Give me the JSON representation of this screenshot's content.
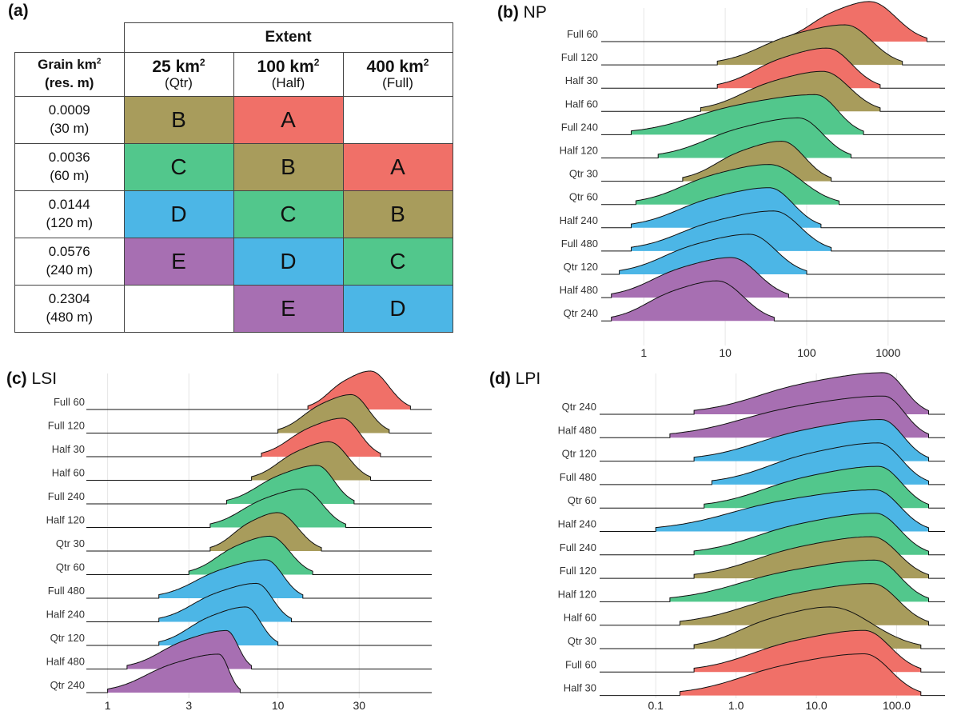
{
  "panel_a": {
    "label": "(a)",
    "extent_header": "Extent",
    "grain_header_line1": "Grain km",
    "grain_header_sup": "2",
    "grain_header_line2": "(res. m)",
    "columns": [
      {
        "size": "25 km",
        "sup": "2",
        "name": "(Qtr)"
      },
      {
        "size": "100 km",
        "sup": "2",
        "name": "(Half)"
      },
      {
        "size": "400 km",
        "sup": "2",
        "name": "(Full)"
      }
    ],
    "rows": [
      {
        "grain": "0.0009",
        "res": "(30 m)",
        "cells": [
          "B",
          "A",
          ""
        ]
      },
      {
        "grain": "0.0036",
        "res": "(60 m)",
        "cells": [
          "C",
          "B",
          "A"
        ]
      },
      {
        "grain": "0.0144",
        "res": "(120 m)",
        "cells": [
          "D",
          "C",
          "B"
        ]
      },
      {
        "grain": "0.0576",
        "res": "(240 m)",
        "cells": [
          "E",
          "D",
          "C"
        ]
      },
      {
        "grain": "0.2304",
        "res": "(480 m)",
        "cells": [
          "",
          "E",
          "D"
        ]
      }
    ],
    "colors": {
      "A": "#f07068",
      "B": "#a89c5c",
      "C": "#52c78c",
      "D": "#4cb6e6",
      "E": "#a76fb2",
      "": "#ffffff"
    }
  },
  "chart_data": [
    {
      "panel_label": "(b)",
      "title": "NP",
      "type": "ridgeline",
      "x_scale": "log10",
      "xlim": [
        0.3,
        5000
      ],
      "x_ticks": [
        1,
        10,
        100,
        1000
      ],
      "x_tick_labels": [
        "1",
        "10",
        "100",
        "1000"
      ],
      "rows": [
        "Full 60",
        "Full 120",
        "Half 30",
        "Half 60",
        "Full 240",
        "Half 120",
        "Qtr 30",
        "Qtr 60",
        "Half 240",
        "Full 480",
        "Qtr 120",
        "Half 480",
        "Qtr 240"
      ],
      "groups": [
        "A",
        "B",
        "A",
        "B",
        "C",
        "C",
        "B",
        "C",
        "D",
        "D",
        "D",
        "E",
        "E"
      ],
      "peaks": [
        600,
        300,
        180,
        160,
        130,
        80,
        50,
        35,
        35,
        40,
        20,
        12,
        8
      ],
      "ranges": [
        [
          50,
          3000
        ],
        [
          8,
          1500
        ],
        [
          8,
          800
        ],
        [
          5,
          800
        ],
        [
          0.7,
          500
        ],
        [
          1.5,
          350
        ],
        [
          3,
          200
        ],
        [
          0.8,
          250
        ],
        [
          0.7,
          150
        ],
        [
          0.7,
          200
        ],
        [
          0.5,
          100
        ],
        [
          0.4,
          60
        ],
        [
          0.4,
          40
        ]
      ]
    },
    {
      "panel_label": "(c)",
      "title": "LSI",
      "type": "ridgeline",
      "x_scale": "log10",
      "xlim": [
        0.75,
        80
      ],
      "x_ticks": [
        1,
        3,
        10,
        30
      ],
      "x_tick_labels": [
        "1",
        "3",
        "10",
        "30"
      ],
      "rows": [
        "Full 60",
        "Full 120",
        "Half 30",
        "Half 60",
        "Full 240",
        "Half 120",
        "Qtr 30",
        "Qtr 60",
        "Full 480",
        "Half 240",
        "Qtr 120",
        "Half 480",
        "Qtr 240"
      ],
      "groups": [
        "A",
        "B",
        "A",
        "B",
        "C",
        "C",
        "B",
        "C",
        "D",
        "D",
        "D",
        "E",
        "E"
      ],
      "peaks": [
        35,
        27,
        24,
        20,
        17,
        14,
        10,
        9,
        8.5,
        7.5,
        6.5,
        5,
        4.5
      ],
      "ranges": [
        [
          15,
          60
        ],
        [
          10,
          45
        ],
        [
          8,
          40
        ],
        [
          7,
          35
        ],
        [
          5,
          28
        ],
        [
          4,
          25
        ],
        [
          4,
          18
        ],
        [
          3,
          16
        ],
        [
          2,
          14
        ],
        [
          2,
          12
        ],
        [
          2,
          10
        ],
        [
          1.3,
          7
        ],
        [
          1,
          6
        ]
      ]
    },
    {
      "panel_label": "(d)",
      "title": "LPI",
      "type": "ridgeline",
      "x_scale": "log10",
      "xlim": [
        0.02,
        400
      ],
      "x_ticks": [
        0.1,
        1,
        10,
        100
      ],
      "x_tick_labels": [
        "0.1",
        "1.0",
        "10.0",
        "100.0"
      ],
      "rows": [
        "Qtr 240",
        "Half 480",
        "Qtr 120",
        "Full 480",
        "Qtr 60",
        "Half 240",
        "Full 240",
        "Full 120",
        "Half 120",
        "Half 60",
        "Qtr 30",
        "Full 60",
        "Half 30"
      ],
      "groups": [
        "E",
        "E",
        "D",
        "D",
        "C",
        "D",
        "C",
        "B",
        "C",
        "B",
        "B",
        "A",
        "A"
      ],
      "peaks": [
        70,
        70,
        65,
        60,
        60,
        55,
        55,
        50,
        55,
        50,
        15,
        40,
        40
      ],
      "ranges": [
        [
          0.3,
          250
        ],
        [
          0.15,
          250
        ],
        [
          0.3,
          250
        ],
        [
          0.5,
          250
        ],
        [
          0.4,
          250
        ],
        [
          0.1,
          250
        ],
        [
          0.3,
          250
        ],
        [
          0.3,
          250
        ],
        [
          0.15,
          250
        ],
        [
          0.2,
          250
        ],
        [
          0.3,
          200
        ],
        [
          0.3,
          200
        ],
        [
          0.2,
          200
        ]
      ]
    }
  ]
}
